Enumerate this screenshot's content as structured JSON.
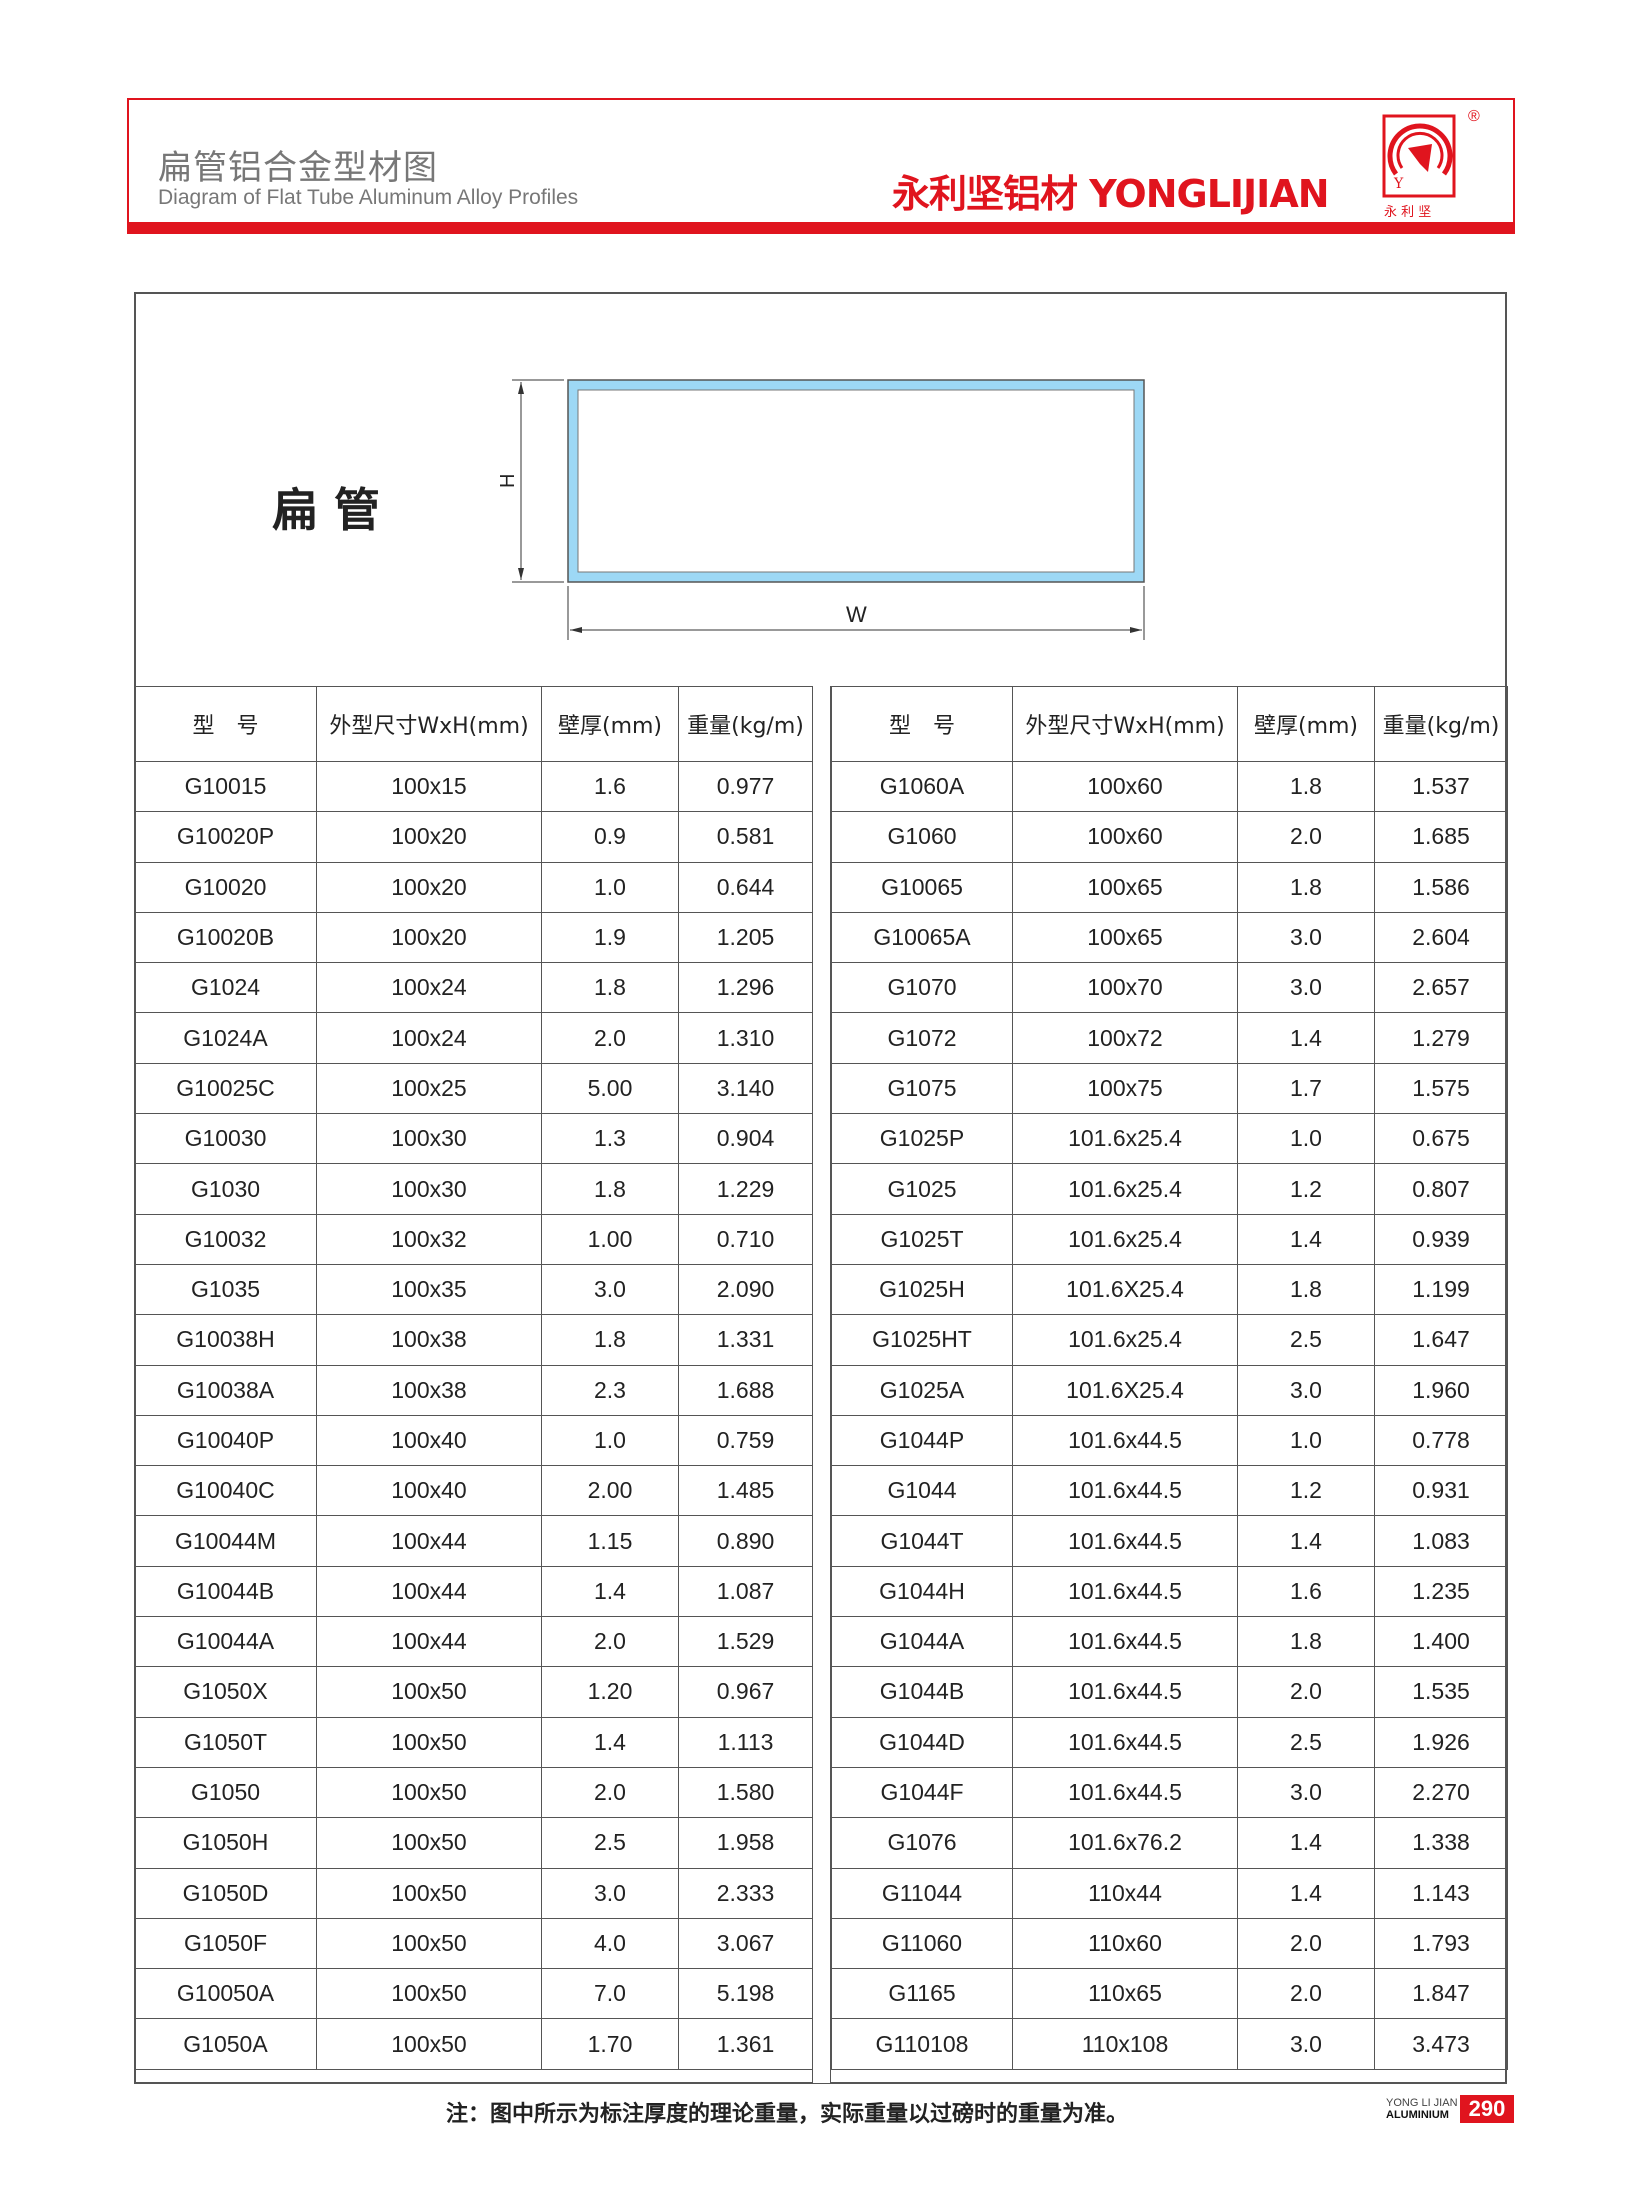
{
  "header": {
    "title_cn": "扁管铝合金型材图",
    "title_en": "Diagram of Flat Tube Aluminum Alloy Profiles",
    "brand": "永利坚铝材 YONGLIJIAN",
    "logo_text": "永 利 坚",
    "registered_mark": "®",
    "accent_color": "#e0141e"
  },
  "diagram": {
    "profile_name": "扁管",
    "height_label": "H",
    "width_label": "W",
    "tube_color": "#9dd8f5"
  },
  "table": {
    "headers": [
      "型　号",
      "外型尺寸WxH(mm)",
      "壁厚(mm)",
      "重量(kg/m)"
    ],
    "left_rows": [
      [
        "G10015",
        "100x15",
        "1.6",
        "0.977"
      ],
      [
        "G10020P",
        "100x20",
        "0.9",
        "0.581"
      ],
      [
        "G10020",
        "100x20",
        "1.0",
        "0.644"
      ],
      [
        "G10020B",
        "100x20",
        "1.9",
        "1.205"
      ],
      [
        "G1024",
        "100x24",
        "1.8",
        "1.296"
      ],
      [
        "G1024A",
        "100x24",
        "2.0",
        "1.310"
      ],
      [
        "G10025C",
        "100x25",
        "5.00",
        "3.140"
      ],
      [
        "G10030",
        "100x30",
        "1.3",
        "0.904"
      ],
      [
        "G1030",
        "100x30",
        "1.8",
        "1.229"
      ],
      [
        "G10032",
        "100x32",
        "1.00",
        "0.710"
      ],
      [
        "G1035",
        "100x35",
        "3.0",
        "2.090"
      ],
      [
        "G10038H",
        "100x38",
        "1.8",
        "1.331"
      ],
      [
        "G10038A",
        "100x38",
        "2.3",
        "1.688"
      ],
      [
        "G10040P",
        "100x40",
        "1.0",
        "0.759"
      ],
      [
        "G10040C",
        "100x40",
        "2.00",
        "1.485"
      ],
      [
        "G10044M",
        "100x44",
        "1.15",
        "0.890"
      ],
      [
        "G10044B",
        "100x44",
        "1.4",
        "1.087"
      ],
      [
        "G10044A",
        "100x44",
        "2.0",
        "1.529"
      ],
      [
        "G1050X",
        "100x50",
        "1.20",
        "0.967"
      ],
      [
        "G1050T",
        "100x50",
        "1.4",
        "1.113"
      ],
      [
        "G1050",
        "100x50",
        "2.0",
        "1.580"
      ],
      [
        "G1050H",
        "100x50",
        "2.5",
        "1.958"
      ],
      [
        "G1050D",
        "100x50",
        "3.0",
        "2.333"
      ],
      [
        "G1050F",
        "100x50",
        "4.0",
        "3.067"
      ],
      [
        "G10050A",
        "100x50",
        "7.0",
        "5.198"
      ],
      [
        "G1050A",
        "100x50",
        "1.70",
        "1.361"
      ]
    ],
    "right_rows": [
      [
        "G1060A",
        "100x60",
        "1.8",
        "1.537"
      ],
      [
        "G1060",
        "100x60",
        "2.0",
        "1.685"
      ],
      [
        "G10065",
        "100x65",
        "1.8",
        "1.586"
      ],
      [
        "G10065A",
        "100x65",
        "3.0",
        "2.604"
      ],
      [
        "G1070",
        "100x70",
        "3.0",
        "2.657"
      ],
      [
        "G1072",
        "100x72",
        "1.4",
        "1.279"
      ],
      [
        "G1075",
        "100x75",
        "1.7",
        "1.575"
      ],
      [
        "G1025P",
        "101.6x25.4",
        "1.0",
        "0.675"
      ],
      [
        "G1025",
        "101.6x25.4",
        "1.2",
        "0.807"
      ],
      [
        "G1025T",
        "101.6x25.4",
        "1.4",
        "0.939"
      ],
      [
        "G1025H",
        "101.6X25.4",
        "1.8",
        "1.199"
      ],
      [
        "G1025HT",
        "101.6x25.4",
        "2.5",
        "1.647"
      ],
      [
        "G1025A",
        "101.6X25.4",
        "3.0",
        "1.960"
      ],
      [
        "G1044P",
        "101.6x44.5",
        "1.0",
        "0.778"
      ],
      [
        "G1044",
        "101.6x44.5",
        "1.2",
        "0.931"
      ],
      [
        "G1044T",
        "101.6x44.5",
        "1.4",
        "1.083"
      ],
      [
        "G1044H",
        "101.6x44.5",
        "1.6",
        "1.235"
      ],
      [
        "G1044A",
        "101.6x44.5",
        "1.8",
        "1.400"
      ],
      [
        "G1044B",
        "101.6x44.5",
        "2.0",
        "1.535"
      ],
      [
        "G1044D",
        "101.6x44.5",
        "2.5",
        "1.926"
      ],
      [
        "G1044F",
        "101.6x44.5",
        "3.0",
        "2.270"
      ],
      [
        "G1076",
        "101.6x76.2",
        "1.4",
        "1.338"
      ],
      [
        "G11044",
        "110x44",
        "1.4",
        "1.143"
      ],
      [
        "G11060",
        "110x60",
        "2.0",
        "1.793"
      ],
      [
        "G1165",
        "110x65",
        "2.0",
        "1.847"
      ],
      [
        "G110108",
        "110x108",
        "3.0",
        "3.473"
      ]
    ]
  },
  "footer": {
    "note": "注：图中所示为标注厚度的理论重量，实际重量以过磅时的重量为准。",
    "brand_small_1": "YONG LI JIAN",
    "brand_small_2": "ALUMINIUM",
    "page_number": "290"
  }
}
